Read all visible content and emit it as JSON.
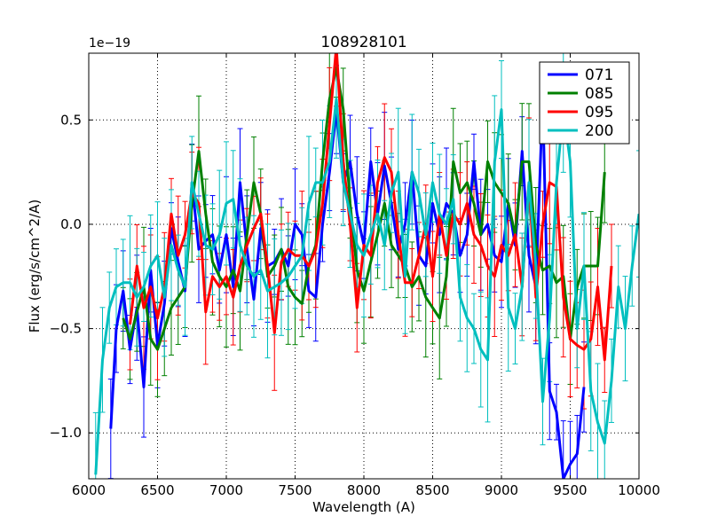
{
  "chart_data": {
    "type": "line",
    "title": "108928101",
    "xlabel": "Wavelength (A)",
    "ylabel": "Flux (erg/s/cm^2/A)",
    "offset_label": "1e−19",
    "xlim": [
      6000,
      10000
    ],
    "ylim": [
      -1.22,
      0.82
    ],
    "grid": true,
    "legend_position": "top-right",
    "x_ticks": [
      6000,
      6500,
      7000,
      7500,
      8000,
      8500,
      9000,
      9500,
      10000
    ],
    "x_tick_labels": [
      "6000",
      "6500",
      "7000",
      "7500",
      "8000",
      "8500",
      "9000",
      "9500",
      "10000"
    ],
    "y_ticks": [
      -1.0,
      -0.5,
      0.0,
      0.5
    ],
    "y_tick_labels": [
      "−1.0",
      "−0.5",
      "0.0",
      "0.5"
    ],
    "series": [
      {
        "name": "071",
        "color": "#0000ff",
        "x": [
          6160,
          6200,
          6250,
          6300,
          6350,
          6400,
          6450,
          6500,
          6550,
          6600,
          6650,
          6700,
          6750,
          6800,
          6850,
          6900,
          6950,
          7000,
          7050,
          7100,
          7150,
          7200,
          7250,
          7300,
          7350,
          7400,
          7450,
          7500,
          7550,
          7600,
          7650,
          7700,
          7750,
          7800,
          7850,
          7900,
          7950,
          8000,
          8050,
          8100,
          8150,
          8200,
          8250,
          8300,
          8350,
          8400,
          8450,
          8500,
          8550,
          8600,
          8650,
          8700,
          8750,
          8800,
          8850,
          8900,
          8950,
          9000,
          9050,
          9100,
          9150,
          9200,
          9250,
          9300,
          9350,
          9400,
          9450,
          9500,
          9550,
          9600
        ],
        "y": [
          -0.98,
          -0.5,
          -0.32,
          -0.6,
          -0.4,
          -0.78,
          -0.22,
          -0.58,
          -0.38,
          -0.02,
          -0.18,
          -0.32,
          0.2,
          -0.12,
          -0.08,
          -0.05,
          -0.22,
          -0.05,
          -0.3,
          0.2,
          -0.12,
          -0.36,
          -0.02,
          -0.2,
          -0.18,
          -0.12,
          -0.2,
          0.0,
          -0.05,
          -0.32,
          -0.35,
          0.0,
          0.25,
          0.55,
          0.2,
          0.3,
          0.05,
          -0.1,
          0.3,
          0.05,
          0.28,
          0.1,
          -0.12,
          0.0,
          0.25,
          -0.15,
          -0.2,
          0.1,
          -0.05,
          0.1,
          0.05,
          -0.15,
          -0.05,
          0.3,
          -0.05,
          0.0,
          -0.15,
          -0.18,
          0.1,
          -0.1,
          0.35,
          -0.15,
          -0.3,
          0.6,
          -0.8,
          -0.9,
          -1.22,
          -1.15,
          -1.1,
          -0.78
        ]
      },
      {
        "name": "085",
        "color": "#008000",
        "x": [
          6250,
          6300,
          6350,
          6400,
          6450,
          6500,
          6550,
          6600,
          6650,
          6700,
          6750,
          6800,
          6850,
          6900,
          6950,
          7000,
          7050,
          7100,
          7150,
          7200,
          7250,
          7300,
          7350,
          7400,
          7450,
          7500,
          7550,
          7600,
          7650,
          7700,
          7750,
          7800,
          7850,
          7900,
          7950,
          8000,
          8050,
          8100,
          8150,
          8200,
          8250,
          8300,
          8350,
          8400,
          8450,
          8500,
          8550,
          8600,
          8650,
          8700,
          8750,
          8800,
          8850,
          8900,
          8950,
          9000,
          9050,
          9100,
          9150,
          9200,
          9250,
          9300,
          9350,
          9400,
          9450,
          9500,
          9550,
          9600,
          9650,
          9700,
          9750
        ],
        "y": [
          -0.45,
          -0.55,
          -0.42,
          -0.3,
          -0.55,
          -0.6,
          -0.5,
          -0.4,
          -0.35,
          -0.3,
          0.1,
          0.35,
          0.05,
          -0.18,
          -0.25,
          -0.3,
          -0.22,
          -0.32,
          -0.05,
          0.2,
          0.05,
          -0.25,
          -0.2,
          -0.12,
          -0.3,
          -0.35,
          -0.38,
          -0.2,
          -0.1,
          0.3,
          0.6,
          0.75,
          0.55,
          0.1,
          -0.22,
          -0.32,
          -0.18,
          -0.05,
          0.1,
          -0.1,
          -0.15,
          -0.2,
          -0.3,
          -0.25,
          -0.35,
          -0.4,
          -0.45,
          -0.25,
          0.3,
          0.15,
          0.2,
          0.1,
          -0.05,
          0.3,
          0.2,
          0.15,
          0.1,
          -0.05,
          0.3,
          0.3,
          -0.1,
          -0.22,
          -0.2,
          -0.28,
          -0.25,
          -0.55,
          -0.3,
          -0.2,
          -0.2,
          -0.2,
          0.25
        ]
      },
      {
        "name": "095",
        "color": "#ff0000",
        "x": [
          6300,
          6350,
          6400,
          6450,
          6500,
          6550,
          6600,
          6650,
          6700,
          6750,
          6800,
          6850,
          6900,
          6950,
          7000,
          7050,
          7100,
          7150,
          7200,
          7250,
          7300,
          7350,
          7400,
          7450,
          7500,
          7550,
          7600,
          7650,
          7700,
          7750,
          7800,
          7850,
          7900,
          7950,
          8000,
          8050,
          8100,
          8150,
          8200,
          8250,
          8300,
          8350,
          8400,
          8450,
          8500,
          8550,
          8600,
          8650,
          8700,
          8750,
          8800,
          8850,
          8900,
          8950,
          9000,
          9050,
          9100,
          9150,
          9200,
          9250,
          9300,
          9350,
          9400,
          9450,
          9500,
          9550,
          9600,
          9650,
          9700,
          9750,
          9800
        ],
        "y": [
          -0.48,
          -0.2,
          -0.4,
          -0.3,
          -0.45,
          -0.3,
          0.05,
          -0.15,
          -0.05,
          0.15,
          0.1,
          -0.42,
          -0.25,
          -0.3,
          -0.25,
          -0.35,
          -0.2,
          -0.1,
          -0.02,
          0.05,
          -0.2,
          -0.52,
          -0.18,
          -0.12,
          -0.15,
          -0.15,
          -0.2,
          -0.12,
          0.1,
          0.48,
          0.85,
          0.3,
          0.0,
          -0.4,
          -0.1,
          -0.15,
          0.2,
          0.32,
          0.25,
          -0.05,
          -0.28,
          -0.28,
          -0.15,
          0.0,
          -0.25,
          0.05,
          -0.15,
          0.05,
          0.0,
          0.1,
          -0.05,
          -0.1,
          -0.2,
          -0.25,
          -0.1,
          -0.15,
          -0.05,
          -0.3,
          0.2,
          -0.35,
          0.0,
          0.2,
          0.18,
          -0.35,
          -0.55,
          -0.58,
          -0.6,
          -0.55,
          -0.3,
          -0.65,
          -0.2
        ]
      },
      {
        "name": "200",
        "color": "#00bfbf",
        "x": [
          6050,
          6100,
          6150,
          6200,
          6250,
          6300,
          6350,
          6400,
          6450,
          6500,
          6550,
          6600,
          6650,
          6700,
          6750,
          6800,
          6850,
          6900,
          6950,
          7000,
          7050,
          7100,
          7150,
          7200,
          7250,
          7300,
          7350,
          7400,
          7450,
          7500,
          7550,
          7600,
          7650,
          7700,
          7750,
          7800,
          7850,
          7900,
          7950,
          8000,
          8050,
          8100,
          8150,
          8200,
          8250,
          8300,
          8350,
          8400,
          8450,
          8500,
          8550,
          8600,
          8650,
          8700,
          8750,
          8800,
          8850,
          8900,
          8950,
          9000,
          9050,
          9100,
          9150,
          9200,
          9250,
          9300,
          9350,
          9400,
          9450,
          9500,
          9550,
          9600,
          9650,
          9700,
          9750,
          9800,
          9850,
          9900,
          9950,
          10000
        ],
        "y": [
          -1.2,
          -0.65,
          -0.4,
          -0.3,
          -0.28,
          -0.28,
          -0.35,
          -0.3,
          -0.2,
          -0.15,
          -0.35,
          -0.1,
          -0.22,
          -0.3,
          0.2,
          0.05,
          -0.1,
          -0.12,
          -0.05,
          0.1,
          0.12,
          -0.1,
          -0.2,
          -0.25,
          -0.22,
          -0.32,
          -0.3,
          -0.28,
          -0.25,
          -0.2,
          -0.15,
          0.1,
          0.2,
          0.2,
          0.3,
          0.6,
          0.2,
          0.05,
          -0.1,
          -0.15,
          -0.05,
          0.05,
          -0.1,
          0.15,
          0.25,
          -0.25,
          0.25,
          0.15,
          -0.05,
          0.2,
          0.05,
          0.0,
          0.12,
          -0.35,
          -0.45,
          -0.5,
          -0.6,
          -0.65,
          0.3,
          0.55,
          -0.4,
          -0.5,
          -0.3,
          0.2,
          -0.2,
          -0.85,
          -0.45,
          0.2,
          0.55,
          0.3,
          -0.5,
          -0.2,
          -0.8,
          -0.95,
          -1.05,
          -0.75,
          -0.3,
          -0.5,
          -0.2,
          0.05
        ]
      }
    ]
  }
}
